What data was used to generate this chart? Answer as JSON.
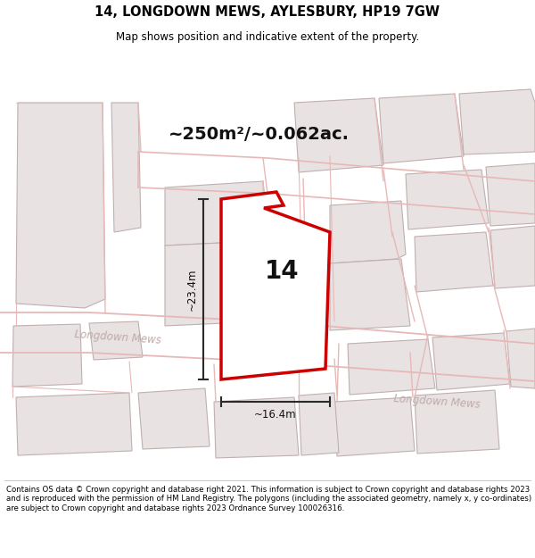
{
  "title_line1": "14, LONGDOWN MEWS, AYLESBURY, HP19 7GW",
  "title_line2": "Map shows position and indicative extent of the property.",
  "area_label": "~250m²/~0.062ac.",
  "width_label": "~16.4m",
  "height_label": "~23.4m",
  "number_label": "14",
  "footer_text": "Contains OS data © Crown copyright and database right 2021. This information is subject to Crown copyright and database rights 2023 and is reproduced with the permission of HM Land Registry. The polygons (including the associated geometry, namely x, y co-ordinates) are subject to Crown copyright and database rights 2023 Ordnance Survey 100026316.",
  "bg_color": "#ffffff",
  "map_bg": "#f9f6f6",
  "building_fill": "#e8e2e2",
  "building_stroke": "#c0b0b0",
  "road_fill": "#ffffff",
  "pink": "#e8b8b8",
  "highlight_fill": "#ffffff",
  "highlight_stroke": "#cc0000",
  "dim_color": "#2a2a2a",
  "street_color": "#c0aaaa",
  "title_color": "#000000"
}
